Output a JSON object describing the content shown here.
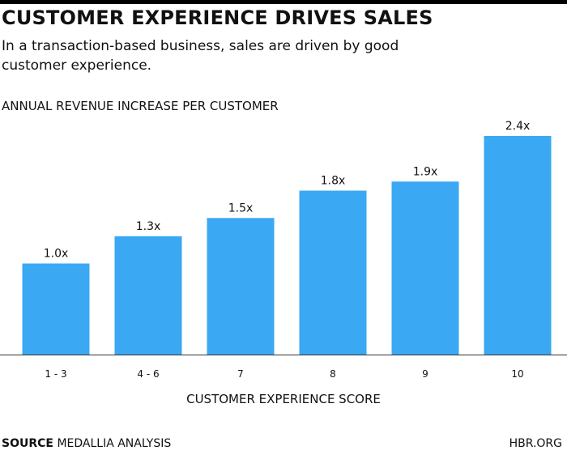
{
  "title": "CUSTOMER EXPERIENCE DRIVES SALES",
  "subtitle": "In a transaction-based business, sales are driven by good customer experience.",
  "footer": {
    "source_label": "SOURCE",
    "source_text": "MEDALLIA ANALYSIS",
    "brand": "HBR.ORG"
  },
  "colors": {
    "bar": "#3AA8F2",
    "axis": "#333333",
    "text": "#111111"
  },
  "chart_data": {
    "type": "bar",
    "title": "CUSTOMER EXPERIENCE DRIVES SALES",
    "ylabel": "ANNUAL REVENUE INCREASE PER CUSTOMER",
    "xlabel": "CUSTOMER EXPERIENCE SCORE",
    "categories": [
      "1 - 3",
      "4 - 6",
      "7",
      "8",
      "9",
      "10"
    ],
    "values": [
      1.0,
      1.3,
      1.5,
      1.8,
      1.9,
      2.4
    ],
    "data_labels": [
      "1.0x",
      "1.3x",
      "1.5x",
      "1.8x",
      "1.9x",
      "2.4x"
    ],
    "ylim": [
      0,
      2.4
    ],
    "grid": false,
    "legend": "none"
  }
}
